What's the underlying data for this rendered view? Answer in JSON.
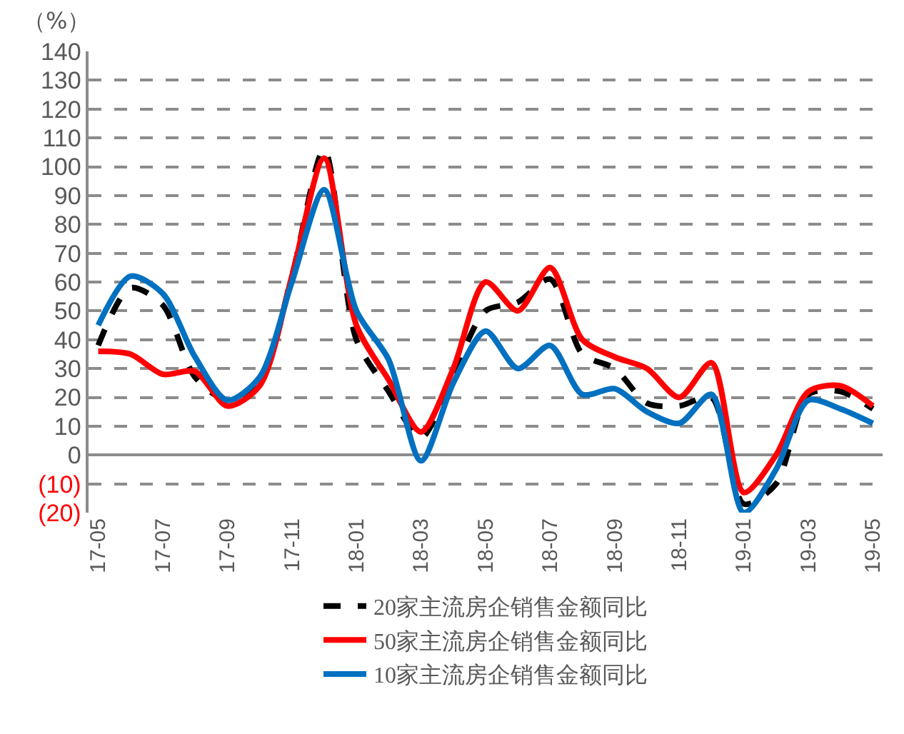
{
  "chart_data": {
    "type": "line",
    "ylabel": "（%）",
    "categories": [
      "17-05",
      null,
      "17-07",
      null,
      "17-09",
      null,
      "17-11",
      null,
      "18-01",
      null,
      "18-03",
      null,
      "18-05",
      null,
      "18-07",
      null,
      "18-09",
      null,
      "18-11",
      null,
      "19-01",
      null,
      "19-03",
      null,
      "19-05"
    ],
    "series": [
      {
        "name": "20家主流房企销售金额同比",
        "color": "#000000",
        "line_style": "dashed",
        "values": [
          38,
          58,
          52,
          27,
          19,
          25,
          62,
          106,
          40,
          22,
          6,
          28,
          50,
          53,
          61,
          35,
          30,
          18,
          17,
          20,
          -17,
          -10,
          21,
          22,
          16
        ]
      },
      {
        "name": "50家主流房企销售金额同比",
        "color": "#ff0000",
        "line_style": "solid",
        "values": [
          36,
          35,
          28,
          29,
          17,
          24,
          62,
          103,
          45,
          26,
          8,
          30,
          60,
          50,
          65,
          40,
          34,
          30,
          20,
          32,
          -13,
          0,
          22,
          24,
          17
        ]
      },
      {
        "name": "10家主流房企销售金额同比",
        "color": "#0070c0",
        "line_style": "solid",
        "values": [
          45,
          62,
          56,
          34,
          19,
          27,
          60,
          92,
          50,
          33,
          -2,
          25,
          43,
          30,
          38,
          21,
          23,
          15,
          11,
          21,
          -20,
          -5,
          19,
          16,
          11
        ]
      }
    ],
    "ylim": [
      -20,
      140
    ],
    "yticks": [
      {
        "value": -20,
        "label": "(20)"
      },
      {
        "value": -10,
        "label": "(10)"
      },
      0,
      10,
      20,
      30,
      40,
      50,
      60,
      70,
      80,
      90,
      100,
      110,
      120,
      130,
      140
    ],
    "grid": "y",
    "legend": "bottom",
    "marker": "none"
  }
}
